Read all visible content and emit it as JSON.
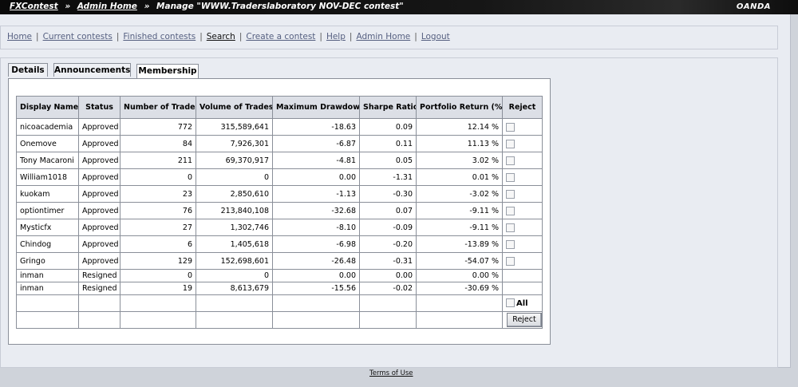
{
  "breadcrumb": {
    "root": "FXContest",
    "sep1": "»",
    "admin": "Admin Home",
    "sep2": "»",
    "current": "Manage \"WWW.Traderslaboratory NOV-DEC contest\""
  },
  "brand": "OANDA",
  "nav": {
    "items": [
      "Home",
      "Current contests",
      "Finished contests",
      "Search",
      "Create a contest",
      "Help",
      "Admin Home",
      "Logout"
    ],
    "separator": "|"
  },
  "tabs": [
    {
      "label": "Details",
      "active": false
    },
    {
      "label": "Announcements",
      "active": false
    },
    {
      "label": "Membership",
      "active": true
    }
  ],
  "table": {
    "headers": [
      "Display Name",
      "Status",
      "Number of Trades",
      "Volume of Trades",
      "Maximum Drawdown",
      "Sharpe Ratio",
      "Portfolio Return (%)",
      "Reject"
    ],
    "rows": [
      {
        "name": "nicoacademia",
        "status": "Approved",
        "trades": "772",
        "volume": "315,589,641",
        "drawdown": "-18.63",
        "sharpe": "0.09",
        "return": "12.14 %",
        "checkbox": true
      },
      {
        "name": "Onemove",
        "status": "Approved",
        "trades": "84",
        "volume": "7,926,301",
        "drawdown": "-6.87",
        "sharpe": "0.11",
        "return": "11.13 %",
        "checkbox": true
      },
      {
        "name": "Tony Macaroni",
        "status": "Approved",
        "trades": "211",
        "volume": "69,370,917",
        "drawdown": "-4.81",
        "sharpe": "0.05",
        "return": "3.02 %",
        "checkbox": true
      },
      {
        "name": "William1018",
        "status": "Approved",
        "trades": "0",
        "volume": "0",
        "drawdown": "0.00",
        "sharpe": "-1.31",
        "return": "0.01 %",
        "checkbox": true
      },
      {
        "name": "kuokam",
        "status": "Approved",
        "trades": "23",
        "volume": "2,850,610",
        "drawdown": "-1.13",
        "sharpe": "-0.30",
        "return": "-3.02 %",
        "checkbox": true
      },
      {
        "name": "optiontimer",
        "status": "Approved",
        "trades": "76",
        "volume": "213,840,108",
        "drawdown": "-32.68",
        "sharpe": "0.07",
        "return": "-9.11 %",
        "checkbox": true
      },
      {
        "name": "Mysticfx",
        "status": "Approved",
        "trades": "27",
        "volume": "1,302,746",
        "drawdown": "-8.10",
        "sharpe": "-0.09",
        "return": "-9.11 %",
        "checkbox": true
      },
      {
        "name": "Chindog",
        "status": "Approved",
        "trades": "6",
        "volume": "1,405,618",
        "drawdown": "-6.98",
        "sharpe": "-0.20",
        "return": "-13.89 %",
        "checkbox": true
      },
      {
        "name": "Gringo",
        "status": "Approved",
        "trades": "129",
        "volume": "152,698,601",
        "drawdown": "-26.48",
        "sharpe": "-0.31",
        "return": "-54.07 %",
        "checkbox": true
      },
      {
        "name": "inman",
        "status": "Resigned",
        "trades": "0",
        "volume": "0",
        "drawdown": "0.00",
        "sharpe": "0.00",
        "return": "0.00 %",
        "checkbox": false
      },
      {
        "name": "inman",
        "status": "Resigned",
        "trades": "19",
        "volume": "8,613,679",
        "drawdown": "-15.56",
        "sharpe": "-0.02",
        "return": "-30.69 %",
        "checkbox": false
      }
    ],
    "all_label": "All",
    "reject_button": "Reject"
  },
  "footer": {
    "terms": "Terms of Use"
  }
}
